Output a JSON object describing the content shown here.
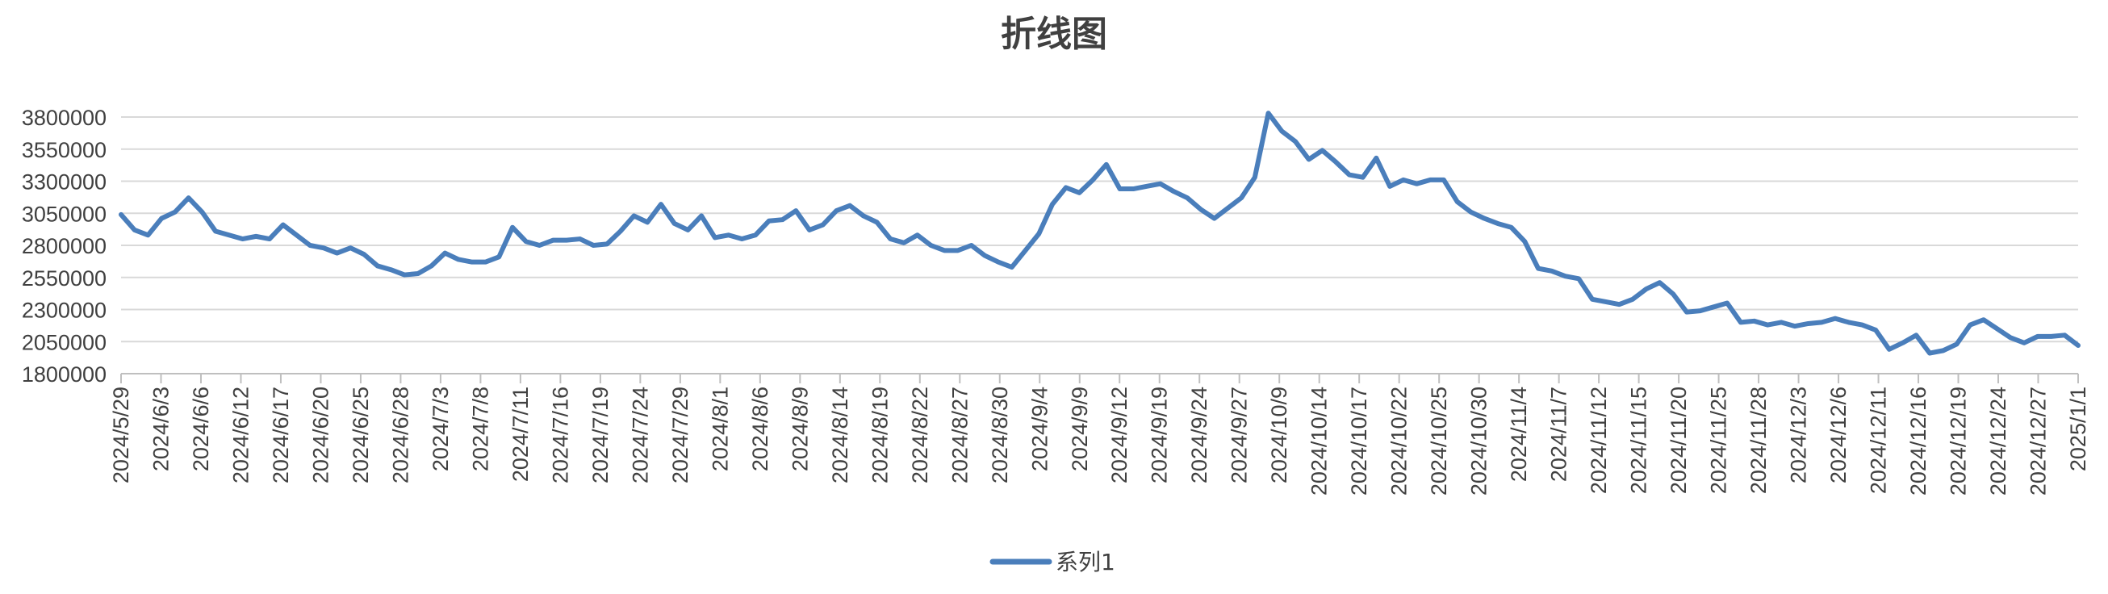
{
  "chart_data": {
    "type": "line",
    "title": "折线图",
    "xlabel": "",
    "ylabel": "",
    "ylim": [
      1800000,
      3800000
    ],
    "yticks": [
      1800000,
      2050000,
      2300000,
      2550000,
      2800000,
      3050000,
      3300000,
      3550000,
      3800000
    ],
    "ytick_labels": [
      "1800000",
      "2050000",
      "2300000",
      "2550000",
      "2800000",
      "3050000",
      "3300000",
      "3550000",
      "3800000"
    ],
    "grid": true,
    "legend": "bottom",
    "series_color": "#4A7EBB",
    "x_labels": [
      "2024/5/29",
      "2024/6/3",
      "2024/6/6",
      "2024/6/12",
      "2024/6/17",
      "2024/6/20",
      "2024/6/25",
      "2024/6/28",
      "2024/7/3",
      "2024/7/8",
      "2024/7/11",
      "2024/7/16",
      "2024/7/19",
      "2024/7/24",
      "2024/7/29",
      "2024/8/1",
      "2024/8/6",
      "2024/8/9",
      "2024/8/14",
      "2024/8/19",
      "2024/8/22",
      "2024/8/27",
      "2024/8/30",
      "2024/9/4",
      "2024/9/9",
      "2024/9/12",
      "2024/9/19",
      "2024/9/24",
      "2024/9/27",
      "2024/10/9",
      "2024/10/14",
      "2024/10/17",
      "2024/10/22",
      "2024/10/25",
      "2024/10/30",
      "2024/11/4",
      "2024/11/7",
      "2024/11/12",
      "2024/11/15",
      "2024/11/20",
      "2024/11/25",
      "2024/11/28",
      "2024/12/3",
      "2024/12/6",
      "2024/12/11",
      "2024/12/16",
      "2024/12/19",
      "2024/12/24",
      "2024/12/27",
      "2025/1/1"
    ],
    "series": [
      {
        "name": "系列1",
        "values": [
          3040000,
          2920000,
          2880000,
          3010000,
          3060000,
          3170000,
          3060000,
          2910000,
          2880000,
          2850000,
          2870000,
          2850000,
          2960000,
          2880000,
          2800000,
          2780000,
          2740000,
          2780000,
          2730000,
          2640000,
          2610000,
          2570000,
          2580000,
          2640000,
          2740000,
          2690000,
          2670000,
          2670000,
          2710000,
          2940000,
          2830000,
          2800000,
          2840000,
          2840000,
          2850000,
          2800000,
          2810000,
          2910000,
          3030000,
          2980000,
          3120000,
          2970000,
          2920000,
          3030000,
          2860000,
          2880000,
          2850000,
          2880000,
          2990000,
          3000000,
          3070000,
          2920000,
          2960000,
          3070000,
          3110000,
          3030000,
          2980000,
          2850000,
          2820000,
          2880000,
          2800000,
          2760000,
          2760000,
          2800000,
          2720000,
          2670000,
          2630000,
          2760000,
          2890000,
          3120000,
          3250000,
          3210000,
          3310000,
          3430000,
          3240000,
          3240000,
          3260000,
          3280000,
          3220000,
          3170000,
          3080000,
          3010000,
          3090000,
          3170000,
          3330000,
          3830000,
          3690000,
          3610000,
          3470000,
          3540000,
          3450000,
          3350000,
          3330000,
          3480000,
          3260000,
          3310000,
          3280000,
          3310000,
          3310000,
          3140000,
          3060000,
          3010000,
          2970000,
          2940000,
          2830000,
          2620000,
          2600000,
          2560000,
          2540000,
          2380000,
          2360000,
          2340000,
          2380000,
          2460000,
          2510000,
          2420000,
          2280000,
          2290000,
          2320000,
          2350000,
          2200000,
          2210000,
          2180000,
          2200000,
          2170000,
          2190000,
          2200000,
          2230000,
          2200000,
          2180000,
          2140000,
          1990000,
          2040000,
          2100000,
          1960000,
          1980000,
          2030000,
          2180000,
          2220000,
          2150000,
          2080000,
          2040000,
          2090000,
          2090000,
          2100000,
          2020000
        ]
      }
    ]
  }
}
